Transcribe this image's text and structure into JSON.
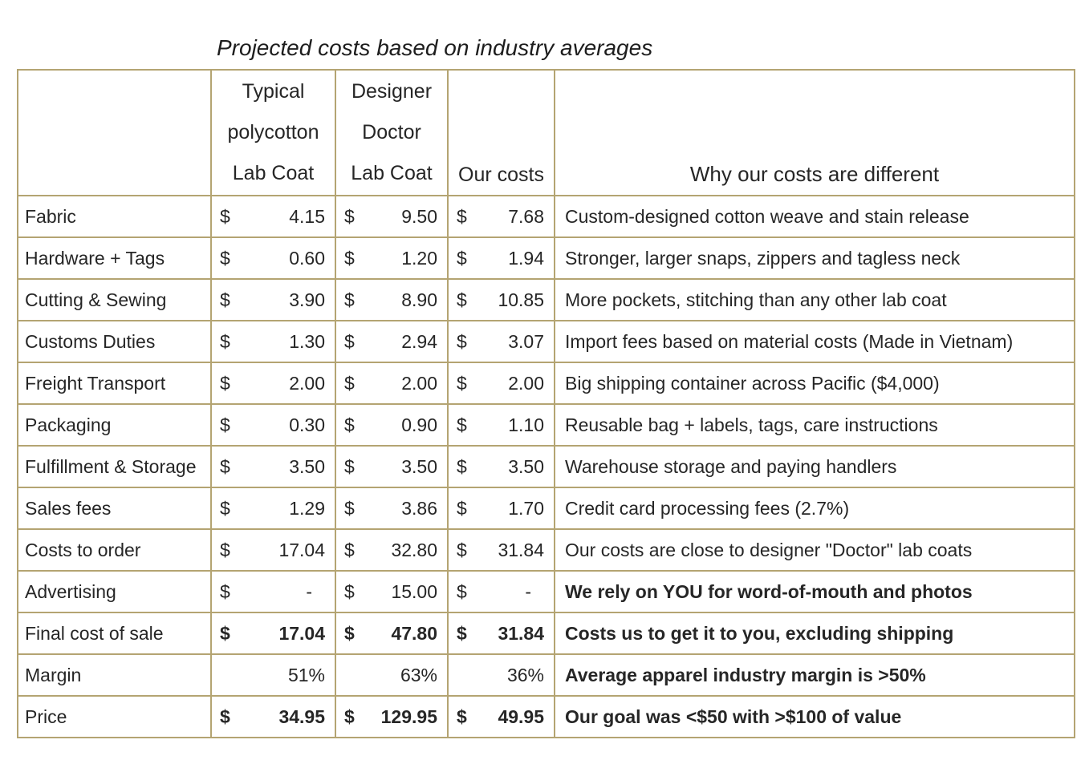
{
  "title": "Projected costs based on industry averages",
  "table": {
    "border_color": "#b4a472",
    "headers": {
      "row_label": "",
      "typical": "Typical\npolycotton\nLab Coat",
      "designer": "Designer\nDoctor\nLab Coat",
      "ours": "Our costs",
      "why": "Why our costs are different"
    },
    "rows": [
      {
        "label": "Fabric",
        "cells": [
          {
            "sign": "$",
            "value": "4.15"
          },
          {
            "sign": "$",
            "value": "9.50"
          },
          {
            "sign": "$",
            "value": "7.68"
          }
        ],
        "why": "Custom-designed cotton weave and stain release",
        "values_bold": false,
        "why_bold": false
      },
      {
        "label": "Hardware + Tags",
        "cells": [
          {
            "sign": "$",
            "value": "0.60"
          },
          {
            "sign": "$",
            "value": "1.20"
          },
          {
            "sign": "$",
            "value": "1.94"
          }
        ],
        "why": "Stronger, larger snaps, zippers and tagless neck",
        "values_bold": false,
        "why_bold": false
      },
      {
        "label": "Cutting & Sewing",
        "cells": [
          {
            "sign": "$",
            "value": "3.90"
          },
          {
            "sign": "$",
            "value": "8.90"
          },
          {
            "sign": "$",
            "value": "10.85"
          }
        ],
        "why": "More pockets, stitching than any other lab coat",
        "values_bold": false,
        "why_bold": false
      },
      {
        "label": "Customs Duties",
        "cells": [
          {
            "sign": "$",
            "value": "1.30"
          },
          {
            "sign": "$",
            "value": "2.94"
          },
          {
            "sign": "$",
            "value": "3.07"
          }
        ],
        "why": "Import fees based on material costs (Made in Vietnam)",
        "values_bold": false,
        "why_bold": false
      },
      {
        "label": "Freight Transport",
        "cells": [
          {
            "sign": "$",
            "value": "2.00"
          },
          {
            "sign": "$",
            "value": "2.00"
          },
          {
            "sign": "$",
            "value": "2.00"
          }
        ],
        "why": "Big shipping container across Pacific ($4,000)",
        "values_bold": false,
        "why_bold": false
      },
      {
        "label": "Packaging",
        "cells": [
          {
            "sign": "$",
            "value": "0.30"
          },
          {
            "sign": "$",
            "value": "0.90"
          },
          {
            "sign": "$",
            "value": "1.10"
          }
        ],
        "why": "Reusable bag + labels, tags, care instructions",
        "values_bold": false,
        "why_bold": false
      },
      {
        "label": "Fulfillment & Storage",
        "cells": [
          {
            "sign": "$",
            "value": "3.50"
          },
          {
            "sign": "$",
            "value": "3.50"
          },
          {
            "sign": "$",
            "value": "3.50"
          }
        ],
        "why": "Warehouse storage and paying handlers",
        "values_bold": false,
        "why_bold": false
      },
      {
        "label": "Sales fees",
        "cells": [
          {
            "sign": "$",
            "value": "1.29"
          },
          {
            "sign": "$",
            "value": "3.86"
          },
          {
            "sign": "$",
            "value": "1.70"
          }
        ],
        "why": "Credit card processing fees (2.7%)",
        "values_bold": false,
        "why_bold": false
      },
      {
        "label": "Costs to order",
        "cells": [
          {
            "sign": "$",
            "value": "17.04"
          },
          {
            "sign": "$",
            "value": "32.80"
          },
          {
            "sign": "$",
            "value": "31.84"
          }
        ],
        "why": "Our costs are close to designer \"Doctor\" lab coats",
        "values_bold": false,
        "why_bold": false
      },
      {
        "label": "Advertising",
        "cells": [
          {
            "sign": "$",
            "value": "-"
          },
          {
            "sign": "$",
            "value": "15.00"
          },
          {
            "sign": "$",
            "value": "-"
          }
        ],
        "why": "We rely on YOU for word-of-mouth and photos",
        "values_bold": false,
        "why_bold": true
      },
      {
        "label": "Final cost of sale",
        "cells": [
          {
            "sign": "$",
            "value": "17.04"
          },
          {
            "sign": "$",
            "value": "47.80"
          },
          {
            "sign": "$",
            "value": "31.84"
          }
        ],
        "why": "Costs us to get it to you, excluding shipping",
        "values_bold": true,
        "why_bold": true
      },
      {
        "label": "Margin",
        "cells": [
          {
            "sign": "",
            "value": "51%"
          },
          {
            "sign": "",
            "value": "63%"
          },
          {
            "sign": "",
            "value": "36%"
          }
        ],
        "why": "Average apparel industry margin is >50%",
        "values_bold": false,
        "why_bold": true
      },
      {
        "label": "Price",
        "cells": [
          {
            "sign": "$",
            "value": "34.95"
          },
          {
            "sign": "$",
            "value": "129.95"
          },
          {
            "sign": "$",
            "value": "49.95"
          }
        ],
        "why": "Our goal was <$50 with >$100 of value",
        "values_bold": true,
        "why_bold": true
      }
    ]
  }
}
